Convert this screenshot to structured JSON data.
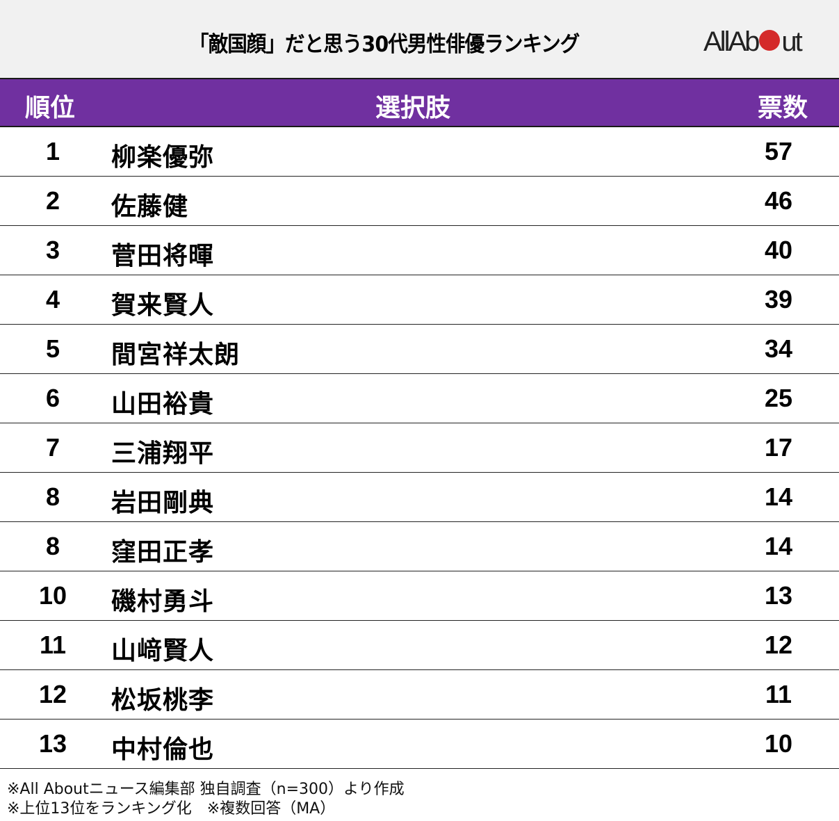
{
  "header": {
    "title": "「敵国顔」だと思う30代男性俳優ランキング",
    "logo": {
      "left": "AllAb",
      "right": "ut",
      "dot_color": "#d42a2a"
    }
  },
  "table": {
    "columns": [
      "順位",
      "選択肢",
      "票数"
    ],
    "header_color": "#7030a0",
    "rows": [
      {
        "rank": "1",
        "name": "柳楽優弥",
        "votes": "57"
      },
      {
        "rank": "2",
        "name": "佐藤健",
        "votes": "46"
      },
      {
        "rank": "3",
        "name": "菅田将暉",
        "votes": "40"
      },
      {
        "rank": "4",
        "name": "賀来賢人",
        "votes": "39"
      },
      {
        "rank": "5",
        "name": "間宮祥太朗",
        "votes": "34"
      },
      {
        "rank": "6",
        "name": "山田裕貴",
        "votes": "25"
      },
      {
        "rank": "7",
        "name": "三浦翔平",
        "votes": "17"
      },
      {
        "rank": "8",
        "name": "岩田剛典",
        "votes": "14"
      },
      {
        "rank": "8",
        "name": "窪田正孝",
        "votes": "14"
      },
      {
        "rank": "10",
        "name": "磯村勇斗",
        "votes": "13"
      },
      {
        "rank": "11",
        "name": "山﨑賢人",
        "votes": "12"
      },
      {
        "rank": "12",
        "name": "松坂桃李",
        "votes": "11"
      },
      {
        "rank": "13",
        "name": "中村倫也",
        "votes": "10"
      }
    ]
  },
  "notes": [
    "※All Aboutニュース編集部 独自調査（n=300）より作成",
    "※上位13位をランキング化　※複数回答（MA）"
  ],
  "chart_data": {
    "type": "table",
    "title": "「敵国顔」だと思う30代男性俳優ランキング",
    "columns": [
      "順位",
      "選択肢",
      "票数"
    ],
    "categories": [
      "柳楽優弥",
      "佐藤健",
      "菅田将暉",
      "賀来賢人",
      "間宮祥太朗",
      "山田裕貴",
      "三浦翔平",
      "岩田剛典",
      "窪田正孝",
      "磯村勇斗",
      "山﨑賢人",
      "松坂桃李",
      "中村倫也"
    ],
    "ranks": [
      1,
      2,
      3,
      4,
      5,
      6,
      7,
      8,
      8,
      10,
      11,
      12,
      13
    ],
    "values": [
      57,
      46,
      40,
      39,
      34,
      25,
      17,
      14,
      14,
      13,
      12,
      11,
      10
    ],
    "notes": [
      "※All Aboutニュース編集部 独自調査（n=300）より作成",
      "※上位13位をランキング化　※複数回答（MA）"
    ]
  }
}
